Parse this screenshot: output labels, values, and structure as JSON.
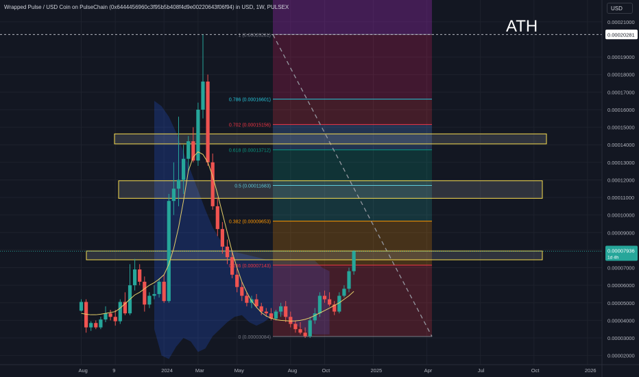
{
  "header": {
    "title": "Wrapped Pulse / USD Coin on PulseChain (0x6444456960c3f95b5b408f4d9e00220643f06f94) in USD, 1W, PULSEX",
    "currency": "USD",
    "annotation": "ATH"
  },
  "chart_data": {
    "type": "candlestick",
    "symbol": "Wrapped Pulse / USD Coin on PulseChain",
    "interval": "1W",
    "exchange": "PULSEX",
    "ylim": [
      1.7e-05,
      2.1e-05
    ],
    "y_ticks": [
      "0.00021000",
      "0.00019000",
      "0.00018000",
      "0.00017000",
      "0.00016000",
      "0.00015000",
      "0.00014000",
      "0.00013000",
      "0.00012000",
      "0.00011000",
      "0.00010000",
      "0.00009000",
      "0.00008000",
      "0.00007000",
      "0.00006000",
      "0.00005000",
      "0.00004000",
      "0.00003000",
      "0.00002000"
    ],
    "y_tick_values": [
      0.00021,
      0.00019,
      0.00018,
      0.00017,
      0.00016,
      0.00015,
      0.00014,
      0.00013,
      0.00012,
      0.00011,
      0.0001,
      9e-05,
      8e-05,
      7e-05,
      6e-05,
      5e-05,
      4e-05,
      3e-05,
      2e-05
    ],
    "x_ticks": [
      "Aug",
      "9",
      "2024",
      "Mar",
      "May",
      "Aug",
      "Oct",
      "2025",
      "Apr",
      "Jul",
      "Oct",
      "2026"
    ],
    "x_tick_index": [
      0,
      7,
      17,
      24,
      32,
      43,
      50,
      60,
      71,
      82,
      93,
      104
    ],
    "last_price_label": "0.00007936",
    "last_price_sublabel": "1d 4h",
    "ath_price_label": "0.00020281",
    "fib_levels": [
      {
        "ratio": "1",
        "value": 0.00020281,
        "label": "1 (0.00020281)",
        "color": "#787b86"
      },
      {
        "ratio": "0.786",
        "value": 0.00016601,
        "label": "0.786 (0.00016601)",
        "color": "#26c6da"
      },
      {
        "ratio": "0.702",
        "value": 0.00015156,
        "label": "0.702 (0.00015156)",
        "color": "#f23645"
      },
      {
        "ratio": "0.618",
        "value": 0.00013712,
        "label": "0.618 (0.00013712)",
        "color": "#089981"
      },
      {
        "ratio": "0.5",
        "value": 0.00011683,
        "label": "0.5 (0.00011683)",
        "color": "#4dd0e1"
      },
      {
        "ratio": "0.382",
        "value": 9.653e-05,
        "label": "0.382 (0.00009653)",
        "color": "#ff9800"
      },
      {
        "ratio": "0.236",
        "value": 7.143e-05,
        "label": "0.236 (0.00007143)",
        "color": "#f23645"
      },
      {
        "ratio": "0",
        "value": 3.084e-05,
        "label": "0 (0.00003084)",
        "color": "#787b86"
      }
    ],
    "zones": [
      {
        "low": 0.0001405,
        "high": 0.0001462
      },
      {
        "low": 0.0001095,
        "high": 0.0001195
      },
      {
        "low": 7.45e-05,
        "high": 7.95e-05
      }
    ],
    "candles": [
      [
        4.55e-05,
        5.2e-05,
        4.5e-05,
        5.05e-05
      ],
      [
        5.05e-05,
        5.2e-05,
        3.3e-05,
        3.6e-05
      ],
      [
        3.6e-05,
        3.95e-05,
        3.4e-05,
        3.85e-05
      ],
      [
        3.85e-05,
        4e-05,
        3.5e-05,
        3.6e-05
      ],
      [
        3.6e-05,
        4.2e-05,
        3.5e-05,
        4.05e-05
      ],
      [
        4.05e-05,
        4.8e-05,
        3.9e-05,
        4.4e-05
      ],
      [
        4.4e-05,
        4.6e-05,
        4e-05,
        4.2e-05
      ],
      [
        4.2e-05,
        4.6e-05,
        3.7e-05,
        3.95e-05
      ],
      [
        3.95e-05,
        5.2e-05,
        3.8e-05,
        5.05e-05
      ],
      [
        5.05e-05,
        5.6e-05,
        4.3e-05,
        4.4e-05
      ],
      [
        4.4e-05,
        7.2e-05,
        4.3e-05,
        6e-05
      ],
      [
        6e-05,
        7.5e-05,
        5.7e-05,
        6.9e-05
      ],
      [
        6.9e-05,
        7.2e-05,
        6e-05,
        6.2e-05
      ],
      [
        6.2e-05,
        6.5e-05,
        4.5e-05,
        4.9e-05
      ],
      [
        4.9e-05,
        5.6e-05,
        4.7e-05,
        5.4e-05
      ],
      [
        5.4e-05,
        6e-05,
        5.2e-05,
        5.5e-05
      ],
      [
        5.5e-05,
        6.4e-05,
        5.3e-05,
        6.2e-05
      ],
      [
        6.2e-05,
        6.6e-05,
        5e-05,
        5.1e-05
      ],
      [
        5.1e-05,
        0.000112,
        5e-05,
        0.000108
      ],
      [
        0.000108,
        0.00013,
        0.0001,
        0.000115
      ],
      [
        0.000115,
        0.000156,
        0.000105,
        0.00012
      ],
      [
        0.00012,
        0.00014,
        0.000112,
        0.000132
      ],
      [
        0.000132,
        0.000145,
        0.000125,
        0.000142
      ],
      [
        0.000142,
        0.00015,
        0.00013,
        0.000131
      ],
      [
        0.000131,
        0.000164,
        0.000128,
        0.00016
      ],
      [
        0.00016,
        0.0002028,
        0.000155,
        0.000176
      ],
      [
        0.000176,
        0.00018,
        0.000128,
        0.00013
      ],
      [
        0.00013,
        0.000135,
        0.000103,
        0.000105
      ],
      [
        0.000105,
        0.00011,
        8.8e-05,
        9.2e-05
      ],
      [
        9.2e-05,
        9.6e-05,
        7.8e-05,
        8.2e-05
      ],
      [
        8.2e-05,
        8.6e-05,
        7.2e-05,
        7.6e-05
      ],
      [
        7.6e-05,
        8e-05,
        6.4e-05,
        6.6e-05
      ],
      [
        6.6e-05,
        7e-05,
        5.6e-05,
        5.9e-05
      ],
      [
        5.9e-05,
        6.2e-05,
        5.1e-05,
        5.4e-05
      ],
      [
        5.4e-05,
        5.6e-05,
        4.8e-05,
        5e-05
      ],
      [
        5e-05,
        5.4e-05,
        4.7e-05,
        5.2e-05
      ],
      [
        5.2e-05,
        5.5e-05,
        4.7e-05,
        4.8e-05
      ],
      [
        4.8e-05,
        5e-05,
        4.3e-05,
        4.5e-05
      ],
      [
        4.5e-05,
        4.7e-05,
        4.2e-05,
        4.4e-05
      ],
      [
        4.4e-05,
        4.7e-05,
        4e-05,
        4.1e-05
      ],
      [
        4.1e-05,
        4.6e-05,
        4e-05,
        4.5e-05
      ],
      [
        4.5e-05,
        5e-05,
        4.2e-05,
        4.8e-05
      ],
      [
        4.8e-05,
        5.1e-05,
        3.9e-05,
        4.2e-05
      ],
      [
        4.2e-05,
        4.5e-05,
        3.6e-05,
        3.8e-05
      ],
      [
        3.8e-05,
        4e-05,
        3.3e-05,
        3.5e-05
      ],
      [
        3.5e-05,
        3.9e-05,
        3.2e-05,
        3.3e-05
      ],
      [
        3.3e-05,
        3.6e-05,
        3e-05,
        3.1e-05
      ],
      [
        3.1e-05,
        4.2e-05,
        3e-05,
        4e-05
      ],
      [
        4e-05,
        4.7e-05,
        3.8e-05,
        4.4e-05
      ],
      [
        4.4e-05,
        5.6e-05,
        4.2e-05,
        5.4e-05
      ],
      [
        5.4e-05,
        5.7e-05,
        5e-05,
        5.2e-05
      ],
      [
        5.2e-05,
        5.6e-05,
        4.8e-05,
        4.9e-05
      ],
      [
        4.9e-05,
        5.1e-05,
        4.3e-05,
        4.5e-05
      ],
      [
        4.5e-05,
        5.6e-05,
        4.4e-05,
        5.4e-05
      ],
      [
        5.4e-05,
        6e-05,
        5.3e-05,
        5.8e-05
      ],
      [
        5.8e-05,
        7e-05,
        5.6e-05,
        6.8e-05
      ],
      [
        6.8e-05,
        8e-05,
        6.6e-05,
        7.94e-05
      ]
    ],
    "ma": [
      4.4e-05,
      4.35e-05,
      4.32e-05,
      4.32e-05,
      4.35e-05,
      4.4e-05,
      4.45e-05,
      4.5e-05,
      4.7e-05,
      4.95e-05,
      5.2e-05,
      5.45e-05,
      5.6e-05,
      5.8e-05,
      6e-05,
      6.15e-05,
      6.35e-05,
      6.6e-05,
      7.2e-05,
      8.1e-05,
      9.3e-05,
      0.000108,
      0.000125,
      0.000133,
      0.000136,
      0.0001345,
      0.00013,
      0.000122,
      0.000112,
      0.000101,
      9e-05,
      7.9e-05,
      7e-05,
      6.2e-05,
      5.6e-05,
      5.1e-05,
      4.75e-05,
      4.45e-05,
      4.25e-05,
      4.12e-05,
      4.04e-05,
      4e-05,
      3.98e-05,
      3.96e-05,
      3.97e-05,
      4e-05,
      4.06e-05,
      4.15e-05,
      4.28e-05,
      4.42e-05,
      4.56e-05,
      4.7e-05,
      4.85e-05,
      5e-05,
      5.2e-05,
      5.4e-05,
      5.65e-05
    ],
    "band_upper": [
      0.000165,
      0.000162,
      0.000156,
      0.000147,
      0.000136,
      0.000125,
      0.000114,
      0.000103,
      9.3e-05,
      8.6e-05,
      8.1e-05,
      7.9e-05,
      7.8e-05,
      7.7e-05,
      7.6e-05,
      7.5e-05,
      7.4e-05,
      7.4e-05,
      7.4e-05,
      7.4e-05,
      7.4e-05,
      7.4e-05,
      7.4e-05,
      7e-05,
      6.8e-05
    ],
    "band_lower": [
      3.5e-05,
      2e-05,
      1.8e-05,
      2.5e-05,
      3e-05,
      2.8e-05,
      2.2e-05,
      2.4e-05,
      3.1e-05,
      3.5e-05,
      3.9e-05,
      4.2e-05,
      4.3e-05,
      3.9e-05,
      3.7e-05,
      3.9e-05,
      4.2e-05,
      4.4e-05,
      4.2e-05,
      3.8e-05,
      3.6e-05,
      3.3e-05,
      3.2e-05,
      3.2e-05,
      3.2e-05
    ],
    "colors": {
      "up": "#26a69a",
      "down": "#ef5350",
      "ma": "#e6d06a",
      "band": "#2962ff",
      "zone": "#f7dc4f",
      "trend": "#9598a1"
    }
  }
}
